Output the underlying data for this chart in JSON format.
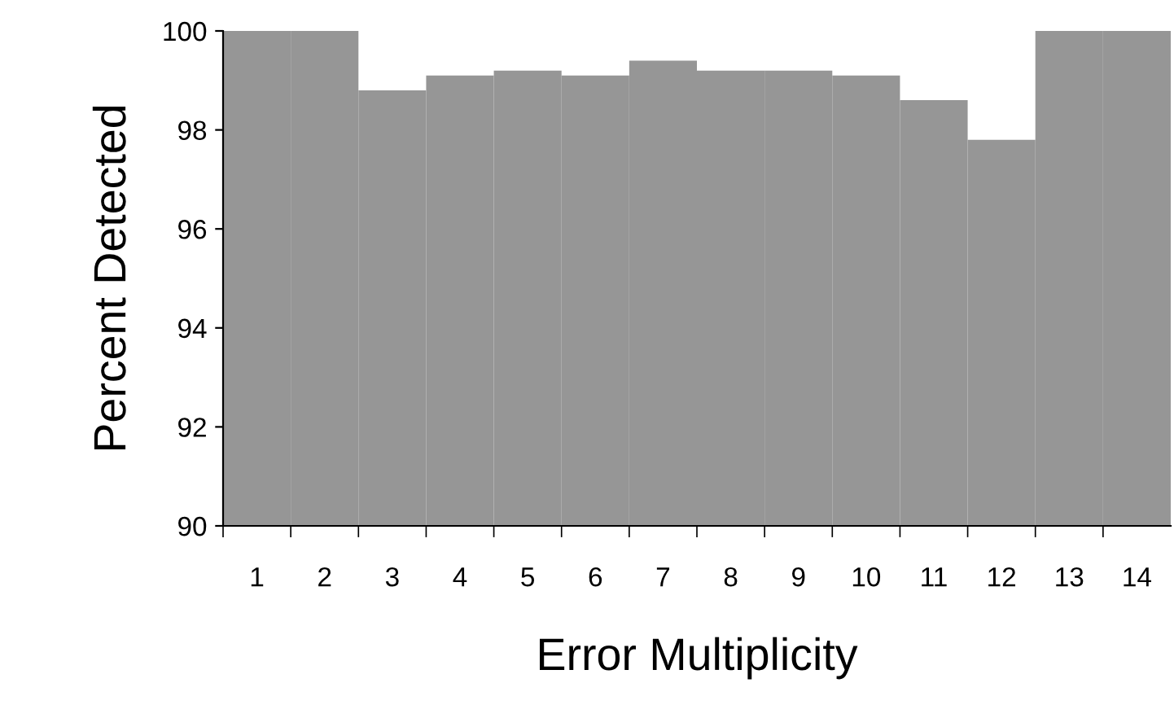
{
  "chart_data": {
    "type": "bar",
    "xlabel": "Error Multiplicity",
    "ylabel": "Percent Detected",
    "categories": [
      "1",
      "2",
      "3",
      "4",
      "5",
      "6",
      "7",
      "8",
      "9",
      "10",
      "11",
      "12",
      "13",
      "14"
    ],
    "values": [
      100,
      100,
      98.8,
      99.1,
      99.2,
      99.1,
      99.4,
      99.2,
      99.2,
      99.1,
      98.6,
      97.8,
      100,
      100
    ],
    "color": "#969696",
    "ylim": [
      90,
      100
    ],
    "yticks": [
      90,
      92,
      94,
      96,
      98,
      100
    ],
    "grid": false
  }
}
